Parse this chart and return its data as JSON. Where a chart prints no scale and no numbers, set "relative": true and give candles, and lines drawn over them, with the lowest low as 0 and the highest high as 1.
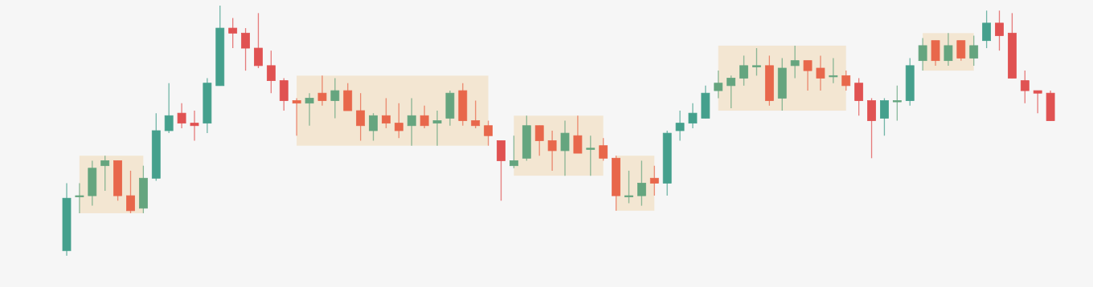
{
  "chart_data": {
    "type": "candlestick",
    "relative": true,
    "categories": [
      null,
      null,
      null,
      null,
      null,
      null,
      null,
      null,
      null,
      null,
      null,
      null,
      null,
      null,
      null,
      null,
      null,
      null,
      null,
      null,
      null,
      null,
      null,
      null,
      null,
      null,
      null,
      null,
      null,
      null,
      null,
      null,
      null,
      null,
      null,
      null,
      null,
      null,
      null,
      null,
      null,
      null,
      null,
      null,
      null,
      null,
      null,
      null,
      null,
      null,
      null,
      null,
      null,
      null,
      null,
      null,
      null,
      null,
      null,
      null,
      null,
      null,
      null,
      null,
      null,
      null,
      null,
      null,
      null,
      null,
      null,
      null,
      null,
      null,
      null,
      null,
      null,
      null
    ],
    "ohlc": [
      [
        0.02,
        0.29,
        0,
        0.23
      ],
      [
        0.24,
        0.29,
        0.17,
        0.24
      ],
      [
        0.24,
        0.38,
        0.2,
        0.35
      ],
      [
        0.36,
        0.4,
        0.26,
        0.38
      ],
      [
        0.38,
        0.38,
        0.22,
        0.24
      ],
      [
        0.24,
        0.34,
        0.17,
        0.18
      ],
      [
        0.19,
        0.36,
        0.17,
        0.31
      ],
      [
        0.31,
        0.57,
        0.3,
        0.5
      ],
      [
        0.5,
        0.69,
        0.49,
        0.56
      ],
      [
        0.57,
        0.61,
        0.51,
        0.53
      ],
      [
        0.53,
        0.58,
        0.46,
        0.52
      ],
      [
        0.53,
        0.71,
        0.49,
        0.69
      ],
      [
        0.68,
        1,
        0.68,
        0.91
      ],
      [
        0.91,
        0.95,
        0.83,
        0.89
      ],
      [
        0.89,
        0.91,
        0.74,
        0.83
      ],
      [
        0.83,
        0.97,
        0.75,
        0.76
      ],
      [
        0.76,
        0.82,
        0.65,
        0.7
      ],
      [
        0.7,
        0.71,
        0.58,
        0.62
      ],
      [
        0.62,
        0.63,
        0.48,
        0.61
      ],
      [
        0.61,
        0.65,
        0.52,
        0.63
      ],
      [
        0.65,
        0.72,
        0.6,
        0.62
      ],
      [
        0.62,
        0.71,
        0.55,
        0.66
      ],
      [
        0.66,
        0.69,
        0.58,
        0.58
      ],
      [
        0.58,
        0.65,
        0.46,
        0.52
      ],
      [
        0.5,
        0.57,
        0.46,
        0.56
      ],
      [
        0.56,
        0.63,
        0.51,
        0.53
      ],
      [
        0.53,
        0.61,
        0.47,
        0.5
      ],
      [
        0.52,
        0.63,
        0.44,
        0.56
      ],
      [
        0.56,
        0.6,
        0.51,
        0.52
      ],
      [
        0.53,
        0.58,
        0.44,
        0.54
      ],
      [
        0.55,
        0.66,
        0.52,
        0.65
      ],
      [
        0.66,
        0.69,
        0.52,
        0.54
      ],
      [
        0.54,
        0.62,
        0.51,
        0.52
      ],
      [
        0.52,
        0.54,
        0.44,
        0.48
      ],
      [
        0.46,
        0.46,
        0.22,
        0.38
      ],
      [
        0.36,
        0.48,
        0.35,
        0.38
      ],
      [
        0.39,
        0.56,
        0.38,
        0.52
      ],
      [
        0.52,
        0.52,
        0.4,
        0.46
      ],
      [
        0.46,
        0.5,
        0.34,
        0.42
      ],
      [
        0.42,
        0.54,
        0.32,
        0.49
      ],
      [
        0.48,
        0.56,
        0.41,
        0.41
      ],
      [
        0.43,
        0.48,
        0.32,
        0.43
      ],
      [
        0.44,
        0.47,
        0.38,
        0.39
      ],
      [
        0.39,
        0.4,
        0.18,
        0.24
      ],
      [
        0.24,
        0.34,
        0.21,
        0.24
      ],
      [
        0.24,
        0.38,
        0.2,
        0.29
      ],
      [
        0.31,
        0.36,
        0.24,
        0.29
      ],
      [
        0.29,
        0.5,
        0.24,
        0.49
      ],
      [
        0.5,
        0.58,
        0.46,
        0.53
      ],
      [
        0.53,
        0.61,
        0.51,
        0.57
      ],
      [
        0.55,
        0.68,
        0.55,
        0.65
      ],
      [
        0.66,
        0.74,
        0.63,
        0.69
      ],
      [
        0.68,
        0.72,
        0.59,
        0.71
      ],
      [
        0.71,
        0.8,
        0.68,
        0.76
      ],
      [
        0.76,
        0.83,
        0.72,
        0.76
      ],
      [
        0.76,
        0.8,
        0.6,
        0.62
      ],
      [
        0.63,
        0.79,
        0.58,
        0.75
      ],
      [
        0.76,
        0.84,
        0.71,
        0.78
      ],
      [
        0.78,
        0.78,
        0.66,
        0.74
      ],
      [
        0.75,
        0.8,
        0.66,
        0.71
      ],
      [
        0.72,
        0.79,
        0.69,
        0.72
      ],
      [
        0.72,
        0.74,
        0.66,
        0.68
      ],
      [
        0.69,
        0.71,
        0.56,
        0.62
      ],
      [
        0.62,
        0.63,
        0.39,
        0.54
      ],
      [
        0.55,
        0.63,
        0.48,
        0.62
      ],
      [
        0.62,
        0.68,
        0.54,
        0.62
      ],
      [
        0.62,
        0.79,
        0.6,
        0.76
      ],
      [
        0.78,
        0.87,
        0.74,
        0.84
      ],
      [
        0.86,
        0.86,
        0.76,
        0.78
      ],
      [
        0.78,
        0.89,
        0.76,
        0.84
      ],
      [
        0.86,
        0.86,
        0.78,
        0.79
      ],
      [
        0.79,
        0.88,
        0.76,
        0.84
      ],
      [
        0.86,
        0.98,
        0.83,
        0.93
      ],
      [
        0.93,
        0.98,
        0.82,
        0.88
      ],
      [
        0.89,
        0.97,
        0.71,
        0.71
      ],
      [
        0.7,
        0.74,
        0.61,
        0.66
      ],
      [
        0.66,
        0.66,
        0.57,
        0.65
      ],
      [
        0.65,
        0.66,
        0.54,
        0.54
      ]
    ],
    "colors": [
      "#45a08d",
      "#65a57f",
      "#65a57f",
      "#65a57f",
      "#e8674b",
      "#e8674b",
      "#65a57f",
      "#45a08d",
      "#45a08d",
      "#e05252",
      "#e05252",
      "#45a08d",
      "#45a08d",
      "#e05252",
      "#e05252",
      "#e05252",
      "#e05252",
      "#e05252",
      "#e8674b",
      "#65a57f",
      "#e8674b",
      "#65a57f",
      "#e8674b",
      "#e8674b",
      "#65a57f",
      "#e8674b",
      "#e8674b",
      "#65a57f",
      "#e8674b",
      "#65a57f",
      "#65a57f",
      "#e8674b",
      "#e8674b",
      "#e8674b",
      "#e05252",
      "#65a57f",
      "#65a57f",
      "#e8674b",
      "#e8674b",
      "#65a57f",
      "#e8674b",
      "#65a57f",
      "#e8674b",
      "#e8674b",
      "#65a57f",
      "#65a57f",
      "#e8674b",
      "#45a08d",
      "#45a08d",
      "#45a08d",
      "#45a08d",
      "#65a57f",
      "#65a57f",
      "#65a57f",
      "#65a57f",
      "#e8674b",
      "#65a57f",
      "#65a57f",
      "#e8674b",
      "#e8674b",
      "#65a57f",
      "#e8674b",
      "#e05252",
      "#e05252",
      "#45a08d",
      "#65a57f",
      "#45a08d",
      "#65a57f",
      "#e8674b",
      "#65a57f",
      "#e8674b",
      "#65a57f",
      "#45a08d",
      "#e05252",
      "#e05252",
      "#e05252",
      "#e05252",
      "#e05252"
    ]
  }
}
